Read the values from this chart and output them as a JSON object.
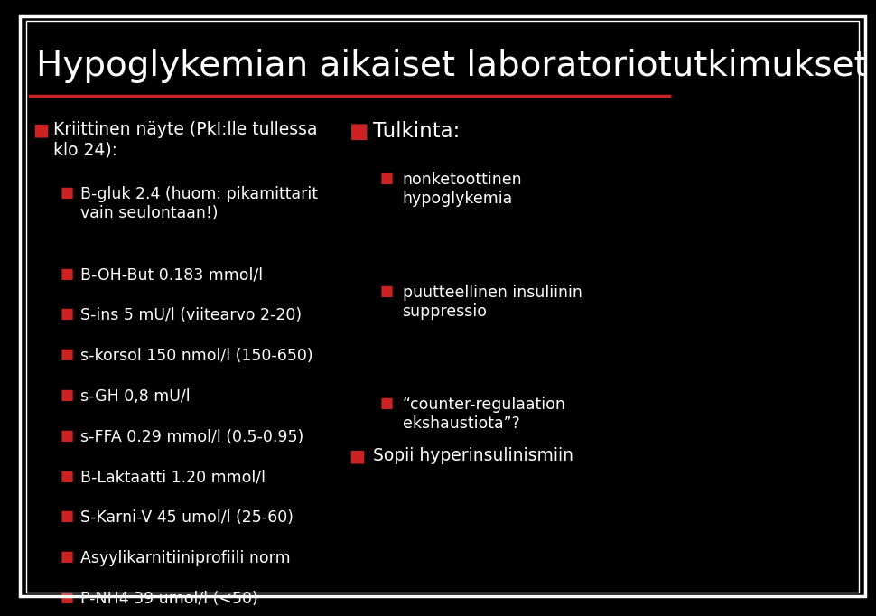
{
  "background_color": "#000000",
  "border_color": "#ffffff",
  "title": "Hypoglykemian aikaiset laboratoriotutkimukset",
  "title_color": "#ffffff",
  "title_fontsize": 28,
  "divider_color": "#cc2222",
  "bullet_color_main": "#cc2222",
  "bullet_color_sub": "#cc2222",
  "text_color": "#ffffff",
  "left_column": {
    "main_bullet": "Kriittinen näyte (PkI:lle tullessa\nklo 24):",
    "sub_bullets": [
      "B-gluk 2.4 (huom: pikamittarit\nvain seulontaan!)",
      "B-OH-But 0.183 mmol/l",
      "S-ins 5 mU/l (viitearvo 2-20)",
      "s-korsol 150 nmol/l (150-650)",
      "s-GH 0,8 mU/l",
      "s-FFA 0.29 mmol/l (0.5-0.95)",
      "B-Laktaatti 1.20 mmol/l",
      "S-Karni-V 45 umol/l (25-60)",
      "Asyylikarnitiiniprofiili norm",
      "P-NH4 39 umol/l (<50)"
    ]
  },
  "right_column": {
    "main_bullet1": "Tulkinta:",
    "sub_bullets1": [
      "nonketoottinen\nhypoglykemia",
      "puutteellinen insuliinin\nsuppressio",
      "“counter-regulaation\nekshaustiota”?"
    ],
    "main_bullet2": "Sopii hyperinsulinismiin",
    "sub_bullets2": []
  },
  "font_family": "DejaVu Sans"
}
